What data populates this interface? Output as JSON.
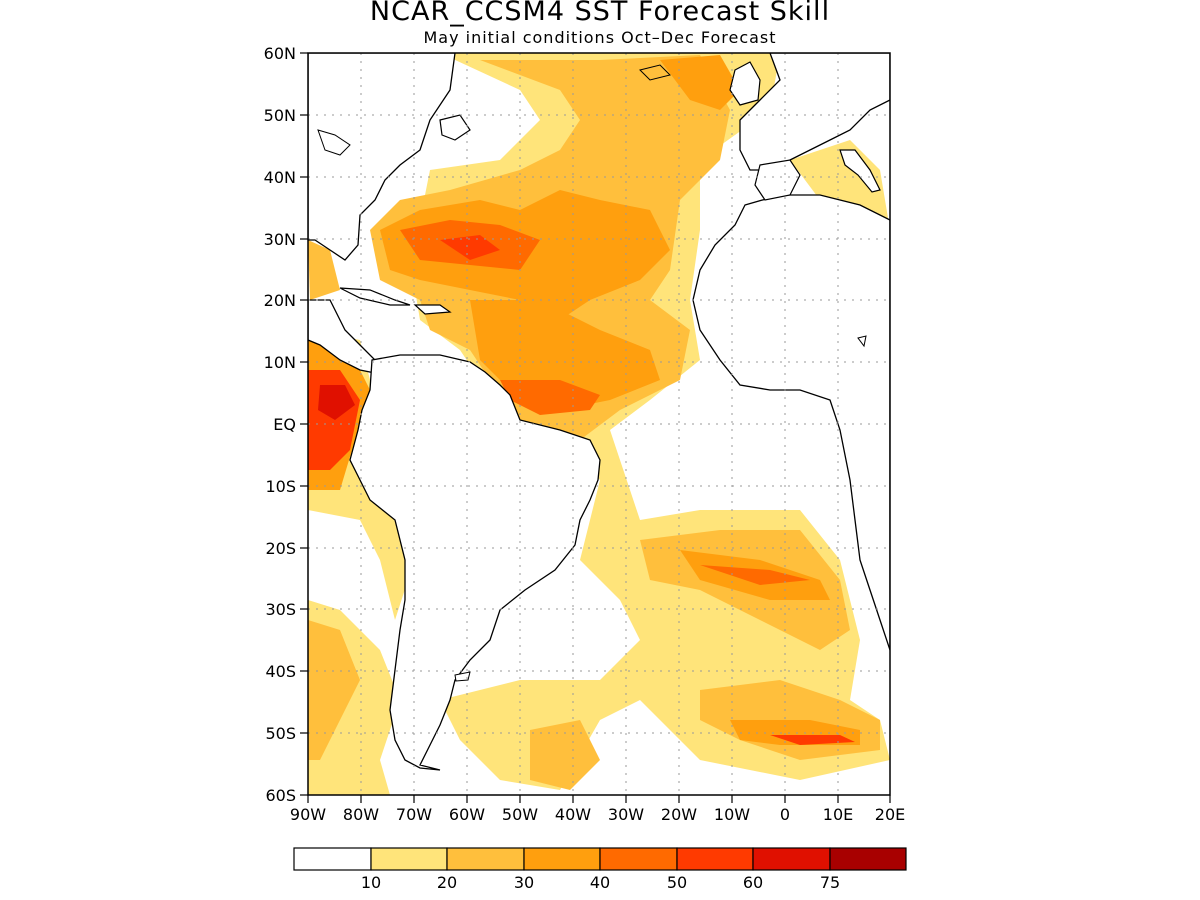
{
  "title": "NCAR_CCSM4  SST Forecast Skill",
  "subtitle": "May initial conditions  Oct–Dec Forecast",
  "map": {
    "lat_labels": [
      "60N",
      "50N",
      "40N",
      "30N",
      "20N",
      "10N",
      "EQ",
      "10S",
      "20S",
      "30S",
      "40S",
      "50S",
      "60S"
    ],
    "lon_labels": [
      "90W",
      "80W",
      "70W",
      "60W",
      "50W",
      "40W",
      "30W",
      "20W",
      "10W",
      "0",
      "10E",
      "20E"
    ],
    "grid": "dotted",
    "lat_range": [
      -60,
      60
    ],
    "lon_range": [
      -90,
      20
    ]
  },
  "colorbar": {
    "colors": [
      "#ffffff",
      "#ffe47a",
      "#ffbf3c",
      "#ff9f0e",
      "#ff6a00",
      "#ff3a00",
      "#e01000",
      "#a80000"
    ],
    "labels": [
      "10",
      "20",
      "30",
      "40",
      "50",
      "60",
      "75"
    ]
  }
}
